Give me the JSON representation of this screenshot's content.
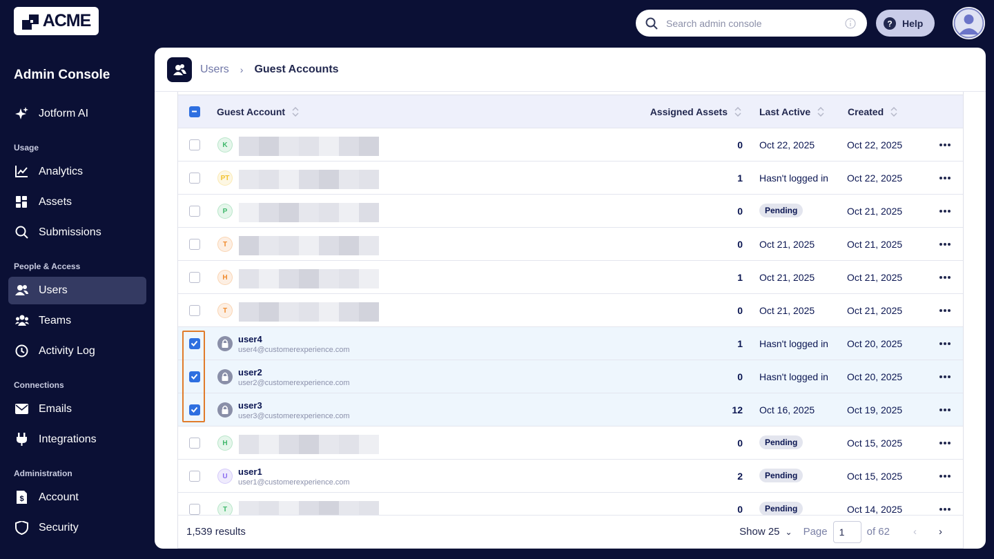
{
  "header": {
    "logo": "ACME",
    "search_placeholder": "Search admin console",
    "help": "Help"
  },
  "sidebar": {
    "title": "Admin Console",
    "top_items": [
      {
        "label": "Jotform AI",
        "icon": "sparkle"
      }
    ],
    "sections": [
      {
        "heading": "Usage",
        "items": [
          {
            "label": "Analytics",
            "icon": "chart"
          },
          {
            "label": "Assets",
            "icon": "grid"
          },
          {
            "label": "Submissions",
            "icon": "search"
          }
        ]
      },
      {
        "heading": "People & Access",
        "items": [
          {
            "label": "Users",
            "icon": "user",
            "selected": true
          },
          {
            "label": "Teams",
            "icon": "team"
          },
          {
            "label": "Activity Log",
            "icon": "clock"
          }
        ]
      },
      {
        "heading": "Connections",
        "items": [
          {
            "label": "Emails",
            "icon": "mail"
          },
          {
            "label": "Integrations",
            "icon": "plug"
          }
        ]
      },
      {
        "heading": "Administration",
        "items": [
          {
            "label": "Account",
            "icon": "doc"
          },
          {
            "label": "Security",
            "icon": "shield"
          }
        ]
      }
    ]
  },
  "breadcrumb": [
    "Users",
    "Guest Accounts"
  ],
  "table": {
    "columns": [
      "Guest Account",
      "Assigned Assets",
      "Last Active",
      "Created"
    ],
    "rows": [
      {
        "initial": "K",
        "avatar_color": "#3fb86b",
        "blurred": true,
        "assets": 0,
        "last_active": "Oct 22, 2025",
        "created": "Oct 22, 2025"
      },
      {
        "initial": "PT",
        "avatar_color": "#f2c230",
        "blurred": true,
        "assets": 1,
        "last_active": "Hasn't logged in",
        "created": "Oct 22, 2025"
      },
      {
        "initial": "P",
        "avatar_color": "#3fb86b",
        "blurred": true,
        "assets": 0,
        "last_active": "Pending",
        "badge": true,
        "created": "Oct 21, 2025"
      },
      {
        "initial": "T",
        "avatar_color": "#f08a2c",
        "blurred": true,
        "assets": 0,
        "last_active": "Oct 21, 2025",
        "created": "Oct 21, 2025"
      },
      {
        "initial": "H",
        "avatar_color": "#f08a2c",
        "blurred": true,
        "assets": 1,
        "last_active": "Oct 21, 2025",
        "created": "Oct 21, 2025"
      },
      {
        "initial": "T",
        "avatar_color": "#f08a2c",
        "blurred": true,
        "assets": 0,
        "last_active": "Oct 21, 2025",
        "created": "Oct 21, 2025"
      },
      {
        "locked": true,
        "checked": true,
        "name": "user4",
        "email": "user4@customerexperience.com",
        "assets": 1,
        "last_active": "Hasn't logged in",
        "created": "Oct 20, 2025"
      },
      {
        "locked": true,
        "checked": true,
        "name": "user2",
        "email": "user2@customerexperience.com",
        "assets": 0,
        "last_active": "Hasn't logged in",
        "created": "Oct 20, 2025"
      },
      {
        "locked": true,
        "checked": true,
        "name": "user3",
        "email": "user3@customerexperience.com",
        "assets": 12,
        "last_active": "Oct 16, 2025",
        "created": "Oct 19, 2025"
      },
      {
        "initial": "H",
        "avatar_color": "#3fb86b",
        "blurred": true,
        "assets": 0,
        "last_active": "Pending",
        "badge": true,
        "created": "Oct 15, 2025"
      },
      {
        "initial": "U",
        "avatar_color": "#8a6cf0",
        "name": "user1",
        "email": "user1@customerexperience.com",
        "assets": 2,
        "last_active": "Pending",
        "badge": true,
        "created": "Oct 15, 2025"
      },
      {
        "initial": "T",
        "avatar_color": "#3fb86b",
        "blurred": true,
        "assets": 0,
        "last_active": "Pending",
        "badge": true,
        "created": "Oct 14, 2025"
      }
    ]
  },
  "footer": {
    "results": "1,539 results",
    "show": "Show 25",
    "page_label": "Page",
    "page": "1",
    "of": "of 62"
  }
}
